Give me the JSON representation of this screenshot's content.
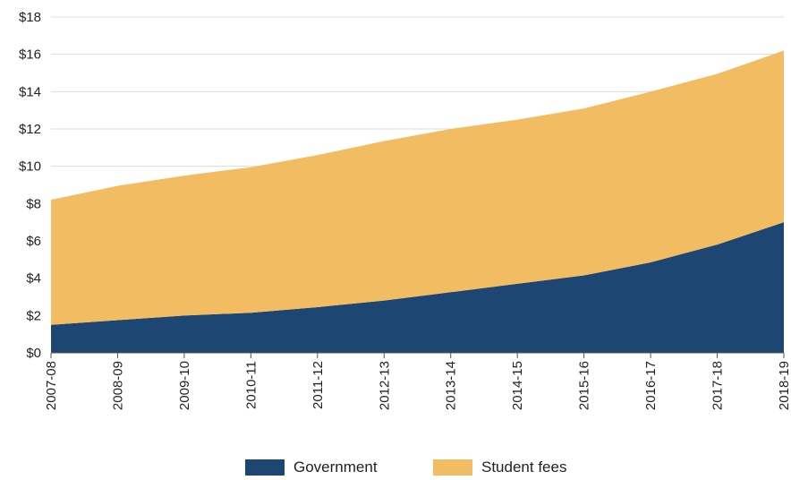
{
  "chart_data": {
    "type": "area",
    "stacked": true,
    "categories": [
      "2007-08",
      "2008-09",
      "2009-10",
      "2010-11",
      "2011-12",
      "2012-13",
      "2013-14",
      "2014-15",
      "2015-16",
      "2016-17",
      "2017-18",
      "2018-19"
    ],
    "series": [
      {
        "name": "Government",
        "color": "#1d4672",
        "values": [
          1.5,
          1.75,
          2.0,
          2.15,
          2.45,
          2.8,
          3.25,
          3.7,
          4.15,
          4.85,
          5.8,
          7.0
        ]
      },
      {
        "name": "Student fees",
        "color": "#f2bd62",
        "values": [
          6.7,
          7.2,
          7.5,
          7.8,
          8.15,
          8.55,
          8.75,
          8.8,
          8.95,
          9.15,
          9.15,
          9.2
        ]
      }
    ],
    "ylim": [
      0,
      18
    ],
    "yticks": [
      0,
      2,
      4,
      6,
      8,
      10,
      12,
      14,
      16,
      18
    ],
    "ytick_labels": [
      "$0",
      "$2",
      "$4",
      "$6",
      "$8",
      "$10",
      "$12",
      "$14",
      "$16",
      "$18"
    ],
    "grid": true,
    "legend_position": "bottom-center",
    "title": "",
    "xlabel": "",
    "ylabel": ""
  }
}
